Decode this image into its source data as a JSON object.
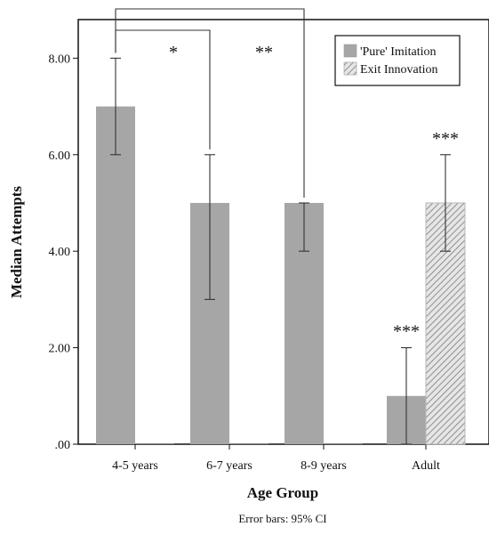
{
  "chart_data": {
    "type": "bar",
    "xlabel": "Age Group",
    "ylabel": "Median Attempts",
    "footnote": "Error bars: 95% CI",
    "categories": [
      "4-5 years",
      "6-7 years",
      "8-9 years",
      "Adult"
    ],
    "ylim": [
      0,
      8.8
    ],
    "yticks": [
      0,
      2,
      4,
      6,
      8
    ],
    "ytick_labels": [
      ".00",
      "2.00",
      "4.00",
      "6.00",
      "8.00"
    ],
    "legend_position": "top-right",
    "series": [
      {
        "name": "'Pure' Imitation",
        "color": "#a6a6a6",
        "pattern": "solid",
        "values": [
          7,
          5,
          5,
          1
        ],
        "error_low": [
          6,
          3,
          4,
          0
        ],
        "error_high": [
          8,
          6,
          5,
          2
        ]
      },
      {
        "name": "Exit Innovation",
        "color": "#c8c8c8",
        "pattern": "diagonal-hatch",
        "values": [
          0,
          0,
          0,
          5
        ],
        "error_low": [
          null,
          null,
          null,
          4
        ],
        "error_high": [
          null,
          null,
          null,
          6
        ]
      }
    ],
    "significance": [
      {
        "label": "*",
        "type": "bracket",
        "from_category": 0,
        "to_category": 1
      },
      {
        "label": "**",
        "type": "bracket",
        "from_category": 0,
        "to_category": 2
      },
      {
        "label": "***",
        "type": "marker",
        "category": 3,
        "series": 0
      },
      {
        "label": "***",
        "type": "marker",
        "category": 3,
        "series": 1
      }
    ]
  }
}
